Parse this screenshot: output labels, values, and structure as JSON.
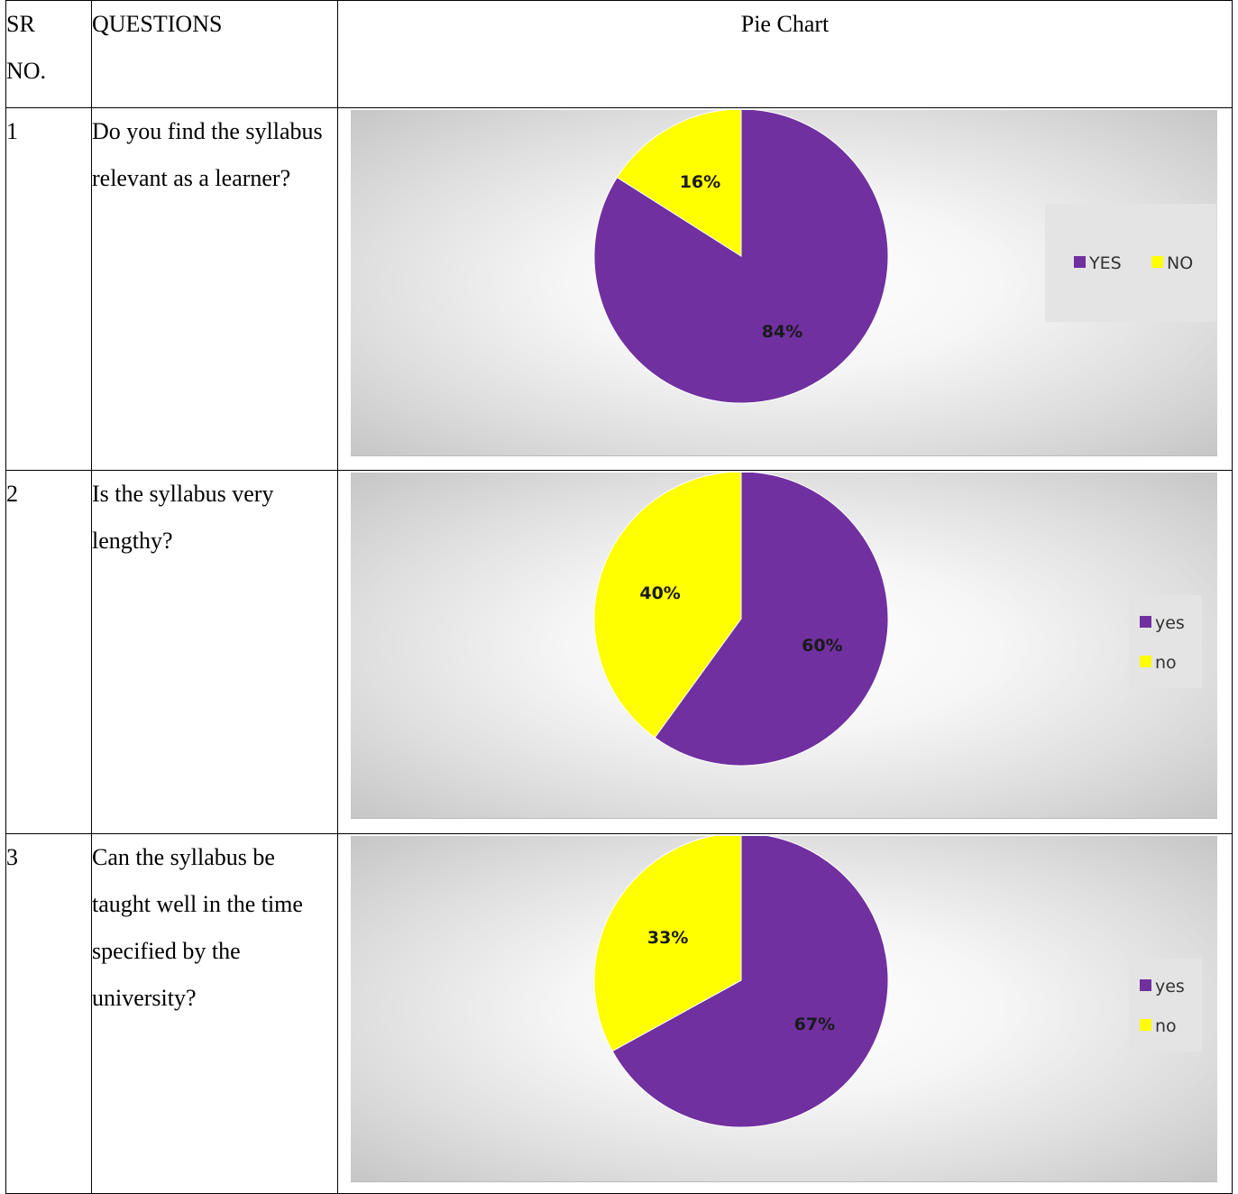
{
  "table": {
    "headers": {
      "sr": "SR\nNO.",
      "sr_line1": "SR",
      "sr_line2": "NO.",
      "question": "QUESTIONS",
      "chart": "Pie Chart"
    },
    "rows": [
      {
        "sr": "1",
        "question": "Do you find the syllabus relevant as a learner?"
      },
      {
        "sr": "2",
        "question": "Is the syllabus very lengthy?"
      },
      {
        "sr": "3",
        "question": "Can the syllabus be taught well in the time specified by the university?"
      }
    ]
  },
  "colors": {
    "yes": "#7030a0",
    "no": "#ffff00"
  },
  "chart_data": [
    {
      "type": "pie",
      "categories": [
        "YES",
        "NO"
      ],
      "values": [
        84,
        16
      ],
      "labels": [
        "84%",
        "16%"
      ],
      "legend": [
        "YES",
        "NO"
      ],
      "legend_placement": "right, horizontal"
    },
    {
      "type": "pie",
      "categories": [
        "yes",
        "no"
      ],
      "values": [
        60,
        40
      ],
      "labels": [
        "60%",
        "40%"
      ],
      "legend": [
        "yes",
        "no"
      ],
      "legend_placement": "right, vertical"
    },
    {
      "type": "pie",
      "categories": [
        "yes",
        "no"
      ],
      "values": [
        67,
        33
      ],
      "labels": [
        "67%",
        "33%"
      ],
      "legend": [
        "yes",
        "no"
      ],
      "legend_placement": "right, vertical"
    }
  ]
}
